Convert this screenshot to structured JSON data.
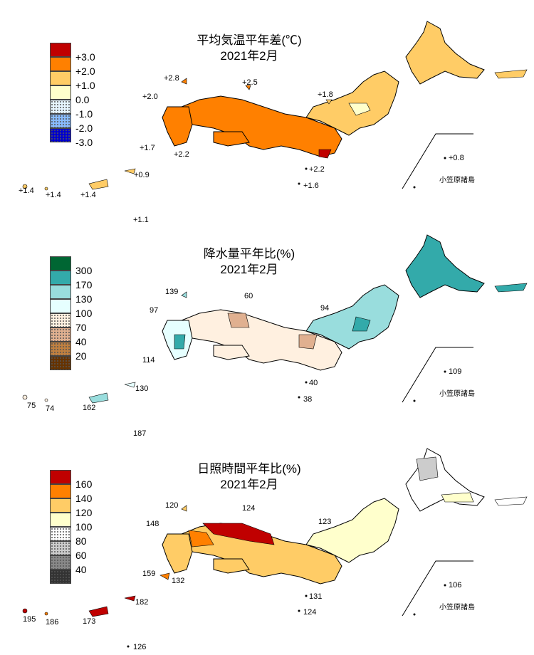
{
  "panels": [
    {
      "id": "temperature",
      "title_line1": "平均気温平年差(℃)",
      "title_line2": "2021年2月",
      "legend": [
        {
          "label": "+3.0",
          "color": "#c00000"
        },
        {
          "label": "+2.0",
          "color": "#ff8000"
        },
        {
          "label": "+1.0",
          "color": "#ffcc66"
        },
        {
          "label": "0.0",
          "color": "#ffffcc"
        },
        {
          "label": "-1.0",
          "color": "#e6f5ff"
        },
        {
          "label": "-2.0",
          "color": "#99ccff"
        },
        {
          "label": "-3.0",
          "color": "#0000cc"
        }
      ],
      "values": [
        "+2.8",
        "+2.5",
        "+2.0",
        "+1.8",
        "+1.7",
        "+2.2",
        "+2.2",
        "+1.6",
        "+0.9",
        "+1.4",
        "+1.4",
        "+1.4",
        "+1.1",
        "+0.8"
      ],
      "ogasawara": "小笠原諸島"
    },
    {
      "id": "precipitation",
      "title_line1": "降水量平年比(%)",
      "title_line2": "2021年2月",
      "legend": [
        {
          "label": "300",
          "color": "#006633"
        },
        {
          "label": "170",
          "color": "#33aaaa"
        },
        {
          "label": "130",
          "color": "#99dddd"
        },
        {
          "label": "100",
          "color": "#e6ffff"
        },
        {
          "label": "70",
          "color": "#fff0e0"
        },
        {
          "label": "40",
          "color": "#e0b090"
        },
        {
          "label": "20",
          "color": "#c08040"
        },
        {
          "label": "",
          "color": "#663300"
        }
      ],
      "values": [
        "139",
        "60",
        "97",
        "94",
        "114",
        "40",
        "38",
        "130",
        "75",
        "74",
        "162",
        "187",
        "109"
      ],
      "ogasawara": "小笠原諸島"
    },
    {
      "id": "sunshine",
      "title_line1": "日照時間平年比(%)",
      "title_line2": "2021年2月",
      "legend": [
        {
          "label": "160",
          "color": "#c00000"
        },
        {
          "label": "140",
          "color": "#ff8000"
        },
        {
          "label": "120",
          "color": "#ffcc66"
        },
        {
          "label": "100",
          "color": "#ffffcc"
        },
        {
          "label": "80",
          "color": "#ffffff"
        },
        {
          "label": "60",
          "color": "#cccccc"
        },
        {
          "label": "40",
          "color": "#888888"
        },
        {
          "label": "",
          "color": "#333333"
        }
      ],
      "values": [
        "120",
        "124",
        "148",
        "123",
        "159",
        "132",
        "131",
        "124",
        "182",
        "195",
        "186",
        "173",
        "126",
        "106"
      ],
      "ogasawara": "小笠原諸島"
    }
  ]
}
